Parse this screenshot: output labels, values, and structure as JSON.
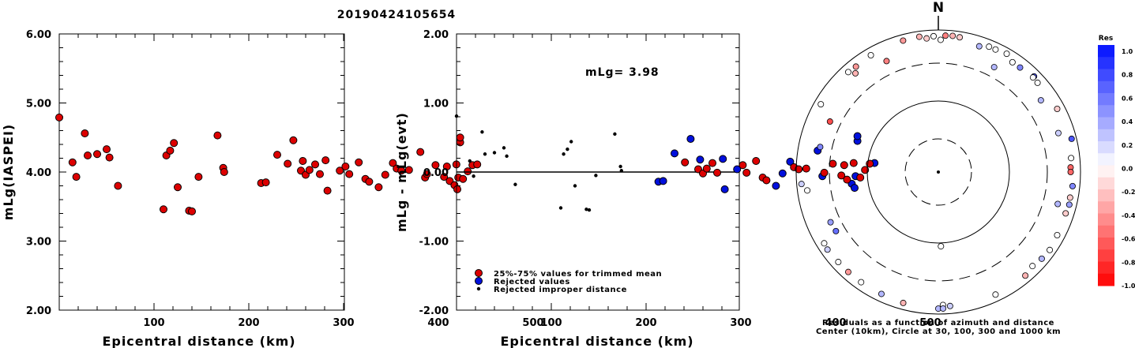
{
  "title": "20190424105654",
  "left_plot": {
    "ylabel": "mLg(IASPEI)",
    "xlabel": "Epicentral distance (km)",
    "yticks": [
      "2.00",
      "3.00",
      "4.00",
      "5.00",
      "6.00"
    ],
    "xticks": [
      "100",
      "200",
      "300",
      "400",
      "500"
    ]
  },
  "mid_plot": {
    "ylabel": "mLg - mLg(evt)",
    "xlabel": "Epicentral distance (km)",
    "annotation": "mLg= 3.98",
    "yticks": [
      "-2.00",
      "-1.00",
      "0.00",
      "1.00",
      "2.00"
    ],
    "xticks": [
      "100",
      "200",
      "300",
      "400",
      "500"
    ],
    "legend": [
      {
        "label": "25%-75% values for trimmed mean",
        "color": "#dd0000"
      },
      {
        "label": "Rejected values",
        "color": "#0010dd"
      },
      {
        "label": "Rejected improper distance",
        "color": "#000000"
      }
    ]
  },
  "polar": {
    "north_label": "N",
    "caption_line1": "Residuals as a function of azimuth and distance",
    "caption_line2": "Center (10km), Circle at 30, 100, 300 and 1000 km"
  },
  "colorbar": {
    "title": "Res",
    "labels": [
      "1.0",
      "0.8",
      "0.6",
      "0.4",
      "0.2",
      "0.0",
      "-0.2",
      "-0.4",
      "-0.6",
      "-0.8",
      "-1.0"
    ]
  },
  "colors": {
    "trimmed": "#dd0000",
    "rejected": "#0010dd",
    "improper": "#000000"
  },
  "chart_data": [
    {
      "type": "scatter",
      "name": "mLg vs distance",
      "xlim": [
        0,
        600
      ],
      "ylim": [
        2,
        6
      ],
      "series": [
        {
          "category": "trimmed",
          "points": [
            [
              0,
              4.79
            ],
            [
              14,
              4.14
            ],
            [
              18,
              3.93
            ],
            [
              27,
              4.56
            ],
            [
              30,
              4.24
            ],
            [
              40,
              4.26
            ],
            [
              50,
              4.33
            ],
            [
              53,
              4.21
            ],
            [
              62,
              3.8
            ],
            [
              110,
              3.46
            ],
            [
              113,
              4.24
            ],
            [
              117,
              4.31
            ],
            [
              121,
              4.42
            ],
            [
              125,
              3.78
            ],
            [
              137,
              3.44
            ],
            [
              140,
              3.43
            ],
            [
              147,
              3.93
            ],
            [
              167,
              4.53
            ],
            [
              173,
              4.06
            ],
            [
              174,
              4.0
            ],
            [
              213,
              3.84
            ],
            [
              218,
              3.85
            ],
            [
              230,
              4.25
            ],
            [
              241,
              4.12
            ],
            [
              247,
              4.46
            ],
            [
              255,
              4.02
            ],
            [
              257,
              4.16
            ],
            [
              260,
              3.96
            ],
            [
              264,
              4.03
            ],
            [
              270,
              4.11
            ],
            [
              275,
              3.97
            ],
            [
              281,
              4.17
            ],
            [
              283,
              3.73
            ],
            [
              296,
              4.02
            ],
            [
              302,
              4.08
            ],
            [
              306,
              3.97
            ],
            [
              316,
              4.14
            ],
            [
              323,
              3.9
            ],
            [
              327,
              3.86
            ],
            [
              337,
              3.78
            ],
            [
              344,
              3.96
            ],
            [
              352,
              4.13
            ],
            [
              356,
              4.05
            ],
            [
              361,
              4.02
            ],
            [
              369,
              4.03
            ],
            [
              381,
              4.29
            ],
            [
              386,
              3.92
            ],
            [
              388,
              3.97
            ],
            [
              397,
              4.1
            ],
            [
              406,
              3.93
            ],
            [
              409,
              4.08
            ],
            [
              412,
              3.87
            ],
            [
              417,
              3.81
            ],
            [
              419,
              4.11
            ],
            [
              420,
              3.75
            ],
            [
              421,
              3.92
            ],
            [
              423,
              4.43
            ],
            [
              423,
              4.5
            ],
            [
              426,
              3.9
            ],
            [
              431,
              4.01
            ],
            [
              436,
              4.1
            ],
            [
              441,
              4.11
            ]
          ]
        }
      ]
    },
    {
      "type": "scatter",
      "name": "residual vs distance",
      "xlim": [
        0,
        600
      ],
      "ylim": [
        -2,
        2
      ],
      "series": [
        {
          "category": "improper",
          "points": [
            [
              0,
              0.81
            ],
            [
              14,
              0.16
            ],
            [
              18,
              -0.06
            ],
            [
              27,
              0.58
            ],
            [
              30,
              0.26
            ],
            [
              40,
              0.28
            ],
            [
              50,
              0.35
            ],
            [
              53,
              0.23
            ],
            [
              62,
              -0.18
            ],
            [
              110,
              -0.52
            ],
            [
              113,
              0.26
            ],
            [
              117,
              0.33
            ],
            [
              121,
              0.44
            ],
            [
              125,
              -0.2
            ],
            [
              137,
              -0.54
            ],
            [
              140,
              -0.55
            ],
            [
              147,
              -0.05
            ],
            [
              167,
              0.55
            ],
            [
              173,
              0.08
            ],
            [
              174,
              0.02
            ]
          ]
        },
        {
          "category": "rejected",
          "points": [
            [
              213,
              -0.14
            ],
            [
              218,
              -0.13
            ],
            [
              230,
              0.27
            ],
            [
              247,
              0.48
            ],
            [
              257,
              0.18
            ],
            [
              281,
              0.19
            ],
            [
              283,
              -0.25
            ],
            [
              296,
              0.04
            ],
            [
              337,
              -0.2
            ],
            [
              344,
              -0.02
            ],
            [
              352,
              0.15
            ],
            [
              381,
              0.31
            ],
            [
              386,
              -0.06
            ],
            [
              417,
              -0.17
            ],
            [
              420,
              -0.23
            ],
            [
              421,
              -0.06
            ],
            [
              423,
              0.45
            ],
            [
              423,
              0.52
            ],
            [
              441,
              0.13
            ]
          ]
        },
        {
          "category": "trimmed",
          "points": [
            [
              241,
              0.14
            ],
            [
              255,
              0.04
            ],
            [
              260,
              -0.02
            ],
            [
              264,
              0.05
            ],
            [
              270,
              0.13
            ],
            [
              275,
              -0.01
            ],
            [
              302,
              0.1
            ],
            [
              306,
              -0.01
            ],
            [
              316,
              0.16
            ],
            [
              323,
              -0.08
            ],
            [
              327,
              -0.12
            ],
            [
              356,
              0.07
            ],
            [
              361,
              0.04
            ],
            [
              369,
              0.05
            ],
            [
              388,
              -0.01
            ],
            [
              397,
              0.12
            ],
            [
              406,
              -0.05
            ],
            [
              409,
              0.1
            ],
            [
              412,
              -0.11
            ],
            [
              419,
              0.13
            ],
            [
              426,
              -0.08
            ],
            [
              431,
              0.03
            ],
            [
              436,
              0.12
            ]
          ]
        }
      ]
    },
    {
      "type": "scatter",
      "name": "residual by azimuth and distance",
      "rings_km": [
        30,
        100,
        300,
        1000
      ],
      "center_km": 10,
      "points": [
        {
          "az": 0,
          "dist": 10,
          "res": null
        },
        {
          "az": 3,
          "dist": 820,
          "res": -0.5
        },
        {
          "az": 6,
          "dist": 830,
          "res": -0.3
        },
        {
          "az": 9,
          "dist": 815,
          "res": -0.2
        },
        {
          "az": 358,
          "dist": 800,
          "res": 0.0
        },
        {
          "az": 1,
          "dist": 700,
          "res": 0.0
        },
        {
          "az": 352,
          "dist": 820,
          "res": -0.3
        },
        {
          "az": 345,
          "dist": 805,
          "res": -0.4
        },
        {
          "az": 18,
          "dist": 700,
          "res": 0.3
        },
        {
          "az": 22,
          "dist": 780,
          "res": 0.0
        },
        {
          "az": 25,
          "dist": 780,
          "res": 0.0
        },
        {
          "az": 30,
          "dist": 820,
          "res": 0.0
        },
        {
          "az": 38,
          "dist": 710,
          "res": 0.5
        },
        {
          "az": 45,
          "dist": 780,
          "res": 0.7
        },
        {
          "az": 45,
          "dist": 740,
          "res": 0.0
        },
        {
          "az": 48,
          "dist": 730,
          "res": 0.0
        },
        {
          "az": 55,
          "dist": 540,
          "res": 0.3
        },
        {
          "az": 62,
          "dist": 760,
          "res": -0.2
        },
        {
          "az": 72,
          "dist": 560,
          "res": 0.2
        },
        {
          "az": 76,
          "dist": 840,
          "res": 0.7
        },
        {
          "az": 84,
          "dist": 730,
          "res": 0.0
        },
        {
          "az": 88,
          "dist": 700,
          "res": -0.6
        },
        {
          "az": 90,
          "dist": 700,
          "res": -0.6
        },
        {
          "az": 96,
          "dist": 770,
          "res": 0.5
        },
        {
          "az": 101,
          "dist": 750,
          "res": -0.2
        },
        {
          "az": 104,
          "dist": 770,
          "res": 0.4
        },
        {
          "az": 108,
          "dist": 740,
          "res": -0.2
        },
        {
          "az": 118,
          "dist": 760,
          "res": 0.0
        },
        {
          "az": 125,
          "dist": 800,
          "res": 0.0
        },
        {
          "az": 130,
          "dist": 770,
          "res": 0.3
        },
        {
          "az": 135,
          "dist": 720,
          "res": 0.0
        },
        {
          "az": 140,
          "dist": 780,
          "res": -0.3
        },
        {
          "az": 155,
          "dist": 780,
          "res": 0.0
        },
        {
          "az": 175,
          "dist": 760,
          "res": 0.2
        },
        {
          "az": 180,
          "dist": 820,
          "res": 0.3
        },
        {
          "az": 178,
          "dist": 720,
          "res": 0.0
        },
        {
          "az": 178,
          "dist": 110,
          "res": 0.0
        },
        {
          "az": 195,
          "dist": 790,
          "res": -0.3
        },
        {
          "az": 205,
          "dist": 760,
          "res": 0.3
        },
        {
          "az": 215,
          "dist": 760,
          "res": 0.0
        },
        {
          "az": 222,
          "dist": 760,
          "res": -0.4
        },
        {
          "az": 228,
          "dist": 760,
          "res": 0.0
        },
        {
          "az": 235,
          "dist": 780,
          "res": 0.2
        },
        {
          "az": 238,
          "dist": 760,
          "res": 0.0
        },
        {
          "az": 240,
          "dist": 420,
          "res": 0.6
        },
        {
          "az": 245,
          "dist": 430,
          "res": 0.4
        },
        {
          "az": 262,
          "dist": 700,
          "res": 0.0
        },
        {
          "az": 265,
          "dist": 840,
          "res": 0.2
        },
        {
          "az": 282,
          "dist": 460,
          "res": 0.5
        },
        {
          "az": 295,
          "dist": 440,
          "res": -0.7
        },
        {
          "az": 300,
          "dist": 790,
          "res": 0.0
        },
        {
          "az": 318,
          "dist": 760,
          "res": 0.0
        },
        {
          "az": 320,
          "dist": 620,
          "res": -0.3
        },
        {
          "az": 330,
          "dist": 770,
          "res": 0.0
        },
        {
          "az": 335,
          "dist": 490,
          "res": -0.5
        },
        {
          "az": 355,
          "dist": 750,
          "res": -0.2
        },
        {
          "az": 28,
          "dist": 430,
          "res": 0.3
        },
        {
          "az": 105,
          "dist": 510,
          "res": 0.3
        },
        {
          "az": 322,
          "dist": 740,
          "res": -0.4
        },
        {
          "az": 34,
          "dist": 705,
          "res": 0.0
        },
        {
          "az": 178,
          "dist": 820,
          "res": 0.3
        }
      ]
    }
  ]
}
